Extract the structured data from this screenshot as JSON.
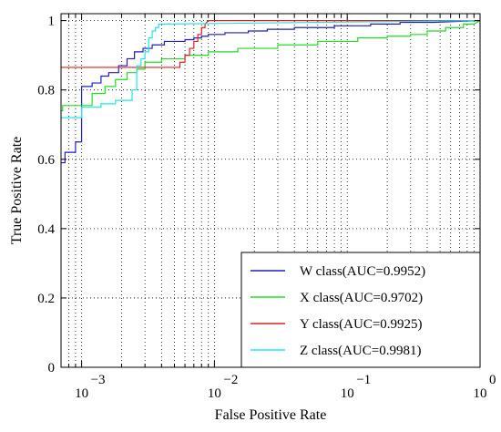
{
  "chart_data": {
    "type": "line",
    "title": "",
    "xlabel": "False Positive Rate",
    "ylabel": "True Positive Rate",
    "x_scale": "log",
    "xlim": [
      0.0007,
      1
    ],
    "ylim": [
      0,
      1.02
    ],
    "grid": true,
    "grid_style": "dotted",
    "legend_position": "bottom-right",
    "x_ticks": [
      {
        "base": "10",
        "exp": "−3"
      },
      {
        "base": "10",
        "exp": "−2"
      },
      {
        "base": "10",
        "exp": "−1"
      },
      {
        "base": "10",
        "exp": "0"
      }
    ],
    "y_ticks": [
      "0",
      "0.2",
      "0.4",
      "0.6",
      "0.8",
      "1"
    ],
    "series": [
      {
        "name": "W class(AUC=0.9952)",
        "color": "#1f1fbf",
        "x": [
          0.0007,
          0.00075,
          0.00075,
          0.0009,
          0.0009,
          0.001,
          0.001,
          0.0012,
          0.0012,
          0.0014,
          0.0014,
          0.0016,
          0.0016,
          0.0019,
          0.0019,
          0.0022,
          0.0022,
          0.0025,
          0.0025,
          0.0029,
          0.0029,
          0.0034,
          0.0034,
          0.0042,
          0.0042,
          0.006,
          0.006,
          0.007,
          0.007,
          0.008,
          0.008,
          0.009,
          0.009,
          0.012,
          0.012,
          0.018,
          0.018,
          0.025,
          0.025,
          0.04,
          0.04,
          0.08,
          0.08,
          0.15,
          0.15,
          0.25,
          0.25,
          0.45,
          1.0
        ],
        "y": [
          0.59,
          0.59,
          0.62,
          0.62,
          0.65,
          0.65,
          0.81,
          0.81,
          0.82,
          0.82,
          0.84,
          0.84,
          0.85,
          0.85,
          0.87,
          0.87,
          0.89,
          0.89,
          0.91,
          0.91,
          0.92,
          0.92,
          0.93,
          0.93,
          0.94,
          0.94,
          0.945,
          0.945,
          0.95,
          0.95,
          0.955,
          0.955,
          0.96,
          0.96,
          0.965,
          0.965,
          0.97,
          0.97,
          0.975,
          0.975,
          0.98,
          0.98,
          0.985,
          0.985,
          0.99,
          0.99,
          0.995,
          0.995,
          1.0
        ]
      },
      {
        "name": "X class(AUC=0.9702)",
        "color": "#22dd22",
        "x": [
          0.0007,
          0.00072,
          0.00072,
          0.0012,
          0.0012,
          0.0015,
          0.0015,
          0.0018,
          0.0018,
          0.0022,
          0.0022,
          0.0026,
          0.0026,
          0.003,
          0.003,
          0.004,
          0.004,
          0.006,
          0.006,
          0.009,
          0.009,
          0.015,
          0.015,
          0.03,
          0.03,
          0.06,
          0.06,
          0.12,
          0.12,
          0.2,
          0.2,
          0.3,
          0.3,
          0.4,
          0.4,
          0.55,
          0.55,
          0.75,
          0.75,
          0.9,
          1.0
        ],
        "y": [
          0.74,
          0.74,
          0.755,
          0.755,
          0.79,
          0.79,
          0.81,
          0.81,
          0.83,
          0.83,
          0.85,
          0.85,
          0.86,
          0.86,
          0.88,
          0.88,
          0.89,
          0.89,
          0.9,
          0.9,
          0.91,
          0.91,
          0.92,
          0.92,
          0.93,
          0.93,
          0.94,
          0.94,
          0.95,
          0.95,
          0.955,
          0.955,
          0.96,
          0.96,
          0.97,
          0.97,
          0.98,
          0.98,
          0.99,
          0.99,
          1.0
        ]
      },
      {
        "name": "Y class(AUC=0.9925)",
        "color": "#dd2222",
        "x": [
          0.0007,
          0.0055,
          0.0055,
          0.006,
          0.006,
          0.0065,
          0.0065,
          0.007,
          0.007,
          0.0075,
          0.0075,
          0.008,
          0.008,
          0.0085,
          0.0085,
          0.009,
          1.0
        ],
        "y": [
          0.865,
          0.865,
          0.88,
          0.88,
          0.9,
          0.9,
          0.92,
          0.92,
          0.94,
          0.94,
          0.96,
          0.96,
          0.98,
          0.98,
          0.99,
          1.0,
          1.0
        ]
      },
      {
        "name": "Z class(AUC=0.9981)",
        "color": "#22e5e5",
        "x": [
          0.0007,
          0.001,
          0.001,
          0.0014,
          0.0014,
          0.0018,
          0.0018,
          0.0024,
          0.0024,
          0.0026,
          0.0026,
          0.0028,
          0.0028,
          0.003,
          0.003,
          0.0032,
          0.0032,
          0.0034,
          0.0034,
          0.0036,
          0.0036,
          0.0038,
          0.0038,
          0.004,
          1.0
        ],
        "y": [
          0.72,
          0.72,
          0.75,
          0.75,
          0.76,
          0.76,
          0.77,
          0.77,
          0.8,
          0.8,
          0.87,
          0.87,
          0.89,
          0.89,
          0.91,
          0.91,
          0.95,
          0.95,
          0.97,
          0.97,
          0.98,
          0.98,
          0.99,
          0.99,
          1.0
        ]
      }
    ]
  }
}
